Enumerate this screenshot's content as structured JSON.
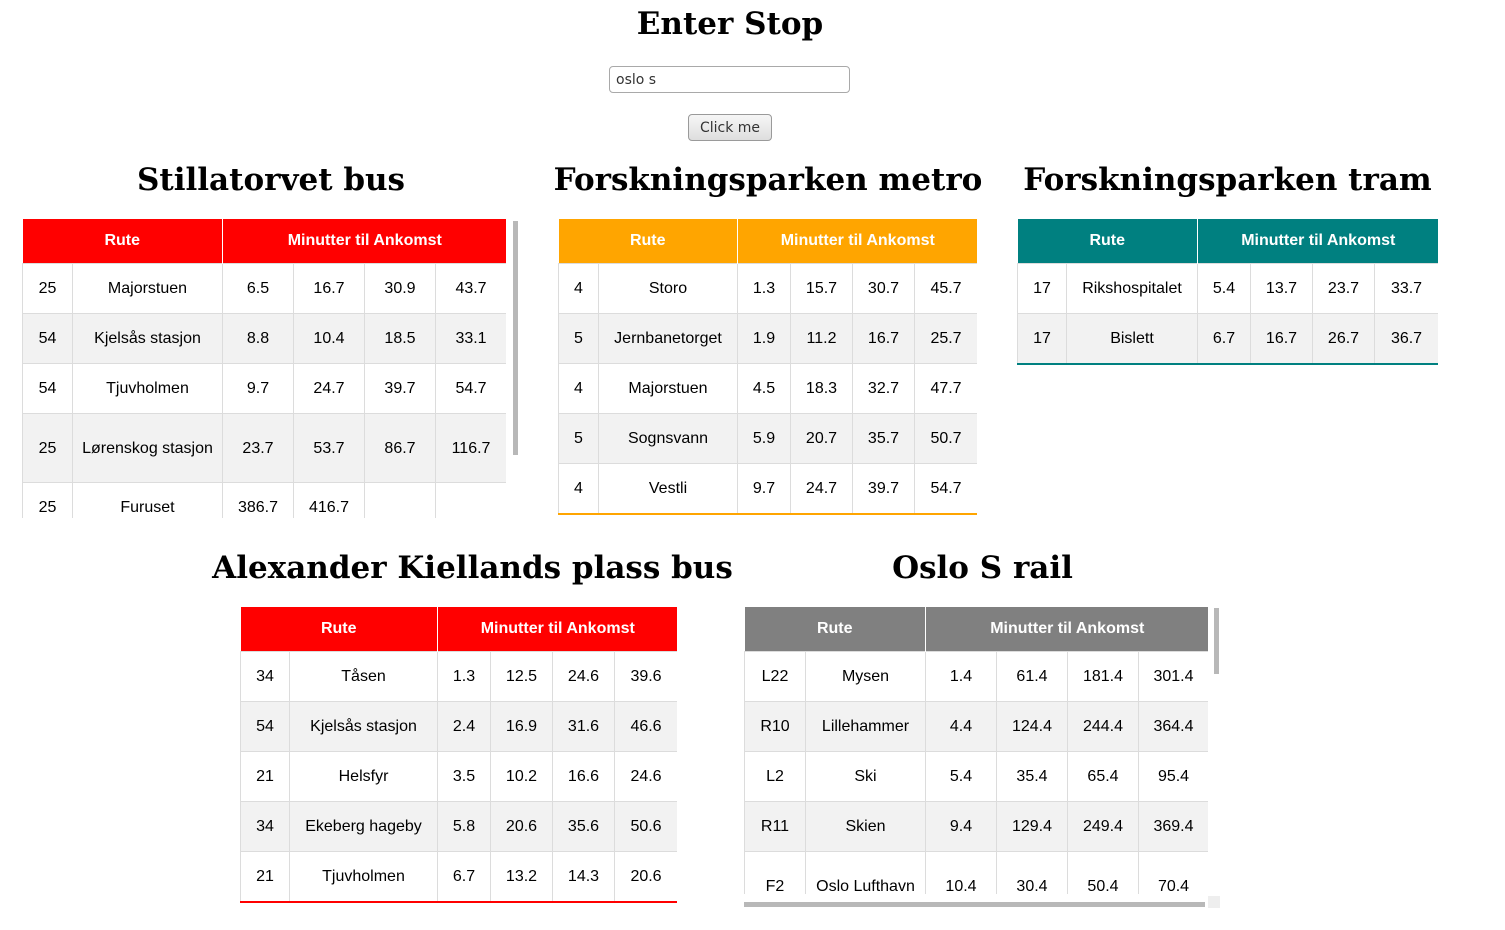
{
  "header": {
    "title": "Enter Stop",
    "search_value": "oslo s",
    "button_label": "Click me"
  },
  "columns": {
    "route": "Rute",
    "minutes": "Minutter til Ankomst"
  },
  "panels": [
    {
      "id": "stillatorvet-bus",
      "title": "Stillatorvet bus",
      "color": "#ff0000",
      "rows": [
        {
          "route": "25",
          "destination": "Majorstuen",
          "minutes": [
            "6.5",
            "16.7",
            "30.9",
            "43.7"
          ]
        },
        {
          "route": "54",
          "destination": "Kjelsås stasjon",
          "minutes": [
            "8.8",
            "10.4",
            "18.5",
            "33.1"
          ]
        },
        {
          "route": "54",
          "destination": "Tjuvholmen",
          "minutes": [
            "9.7",
            "24.7",
            "39.7",
            "54.7"
          ]
        },
        {
          "route": "25",
          "destination": "Lørenskog stasjon",
          "minutes": [
            "23.7",
            "53.7",
            "86.7",
            "116.7"
          ]
        },
        {
          "route": "25",
          "destination": "Furuset",
          "minutes": [
            "386.7",
            "416.7",
            "",
            ""
          ]
        }
      ]
    },
    {
      "id": "forskningsparken-metro",
      "title": "Forskningsparken metro",
      "color": "#ffa500",
      "rows": [
        {
          "route": "4",
          "destination": "Storo",
          "minutes": [
            "1.3",
            "15.7",
            "30.7",
            "45.7"
          ]
        },
        {
          "route": "5",
          "destination": "Jernbanetorget",
          "minutes": [
            "1.9",
            "11.2",
            "16.7",
            "25.7"
          ]
        },
        {
          "route": "4",
          "destination": "Majorstuen",
          "minutes": [
            "4.5",
            "18.3",
            "32.7",
            "47.7"
          ]
        },
        {
          "route": "5",
          "destination": "Sognsvann",
          "minutes": [
            "5.9",
            "20.7",
            "35.7",
            "50.7"
          ]
        },
        {
          "route": "4",
          "destination": "Vestli",
          "minutes": [
            "9.7",
            "24.7",
            "39.7",
            "54.7"
          ]
        }
      ]
    },
    {
      "id": "forskningsparken-tram",
      "title": "Forskningsparken tram",
      "color": "#008080",
      "rows": [
        {
          "route": "17",
          "destination": "Rikshospitalet",
          "minutes": [
            "5.4",
            "13.7",
            "23.7",
            "33.7"
          ]
        },
        {
          "route": "17",
          "destination": "Bislett",
          "minutes": [
            "6.7",
            "16.7",
            "26.7",
            "36.7"
          ]
        }
      ]
    },
    {
      "id": "alexander-kiellands-plass-bus",
      "title": "Alexander Kiellands plass bus",
      "color": "#ff0000",
      "rows": [
        {
          "route": "34",
          "destination": "Tåsen",
          "minutes": [
            "1.3",
            "12.5",
            "24.6",
            "39.6"
          ]
        },
        {
          "route": "54",
          "destination": "Kjelsås stasjon",
          "minutes": [
            "2.4",
            "16.9",
            "31.6",
            "46.6"
          ]
        },
        {
          "route": "21",
          "destination": "Helsfyr",
          "minutes": [
            "3.5",
            "10.2",
            "16.6",
            "24.6"
          ]
        },
        {
          "route": "34",
          "destination": "Ekeberg hageby",
          "minutes": [
            "5.8",
            "20.6",
            "35.6",
            "50.6"
          ]
        },
        {
          "route": "21",
          "destination": "Tjuvholmen",
          "minutes": [
            "6.7",
            "13.2",
            "14.3",
            "20.6"
          ]
        }
      ]
    },
    {
      "id": "oslo-s-rail",
      "title": "Oslo S rail",
      "color": "#808080",
      "rows": [
        {
          "route": "L22",
          "destination": "Mysen",
          "minutes": [
            "1.4",
            "61.4",
            "181.4",
            "301.4"
          ]
        },
        {
          "route": "R10",
          "destination": "Lillehammer",
          "minutes": [
            "4.4",
            "124.4",
            "244.4",
            "364.4"
          ]
        },
        {
          "route": "L2",
          "destination": "Ski",
          "minutes": [
            "5.4",
            "35.4",
            "65.4",
            "95.4"
          ]
        },
        {
          "route": "R11",
          "destination": "Skien",
          "minutes": [
            "9.4",
            "129.4",
            "249.4",
            "369.4"
          ]
        },
        {
          "route": "F2",
          "destination": "Oslo Lufthavn",
          "minutes": [
            "10.4",
            "30.4",
            "50.4",
            "70.4"
          ]
        }
      ]
    }
  ]
}
